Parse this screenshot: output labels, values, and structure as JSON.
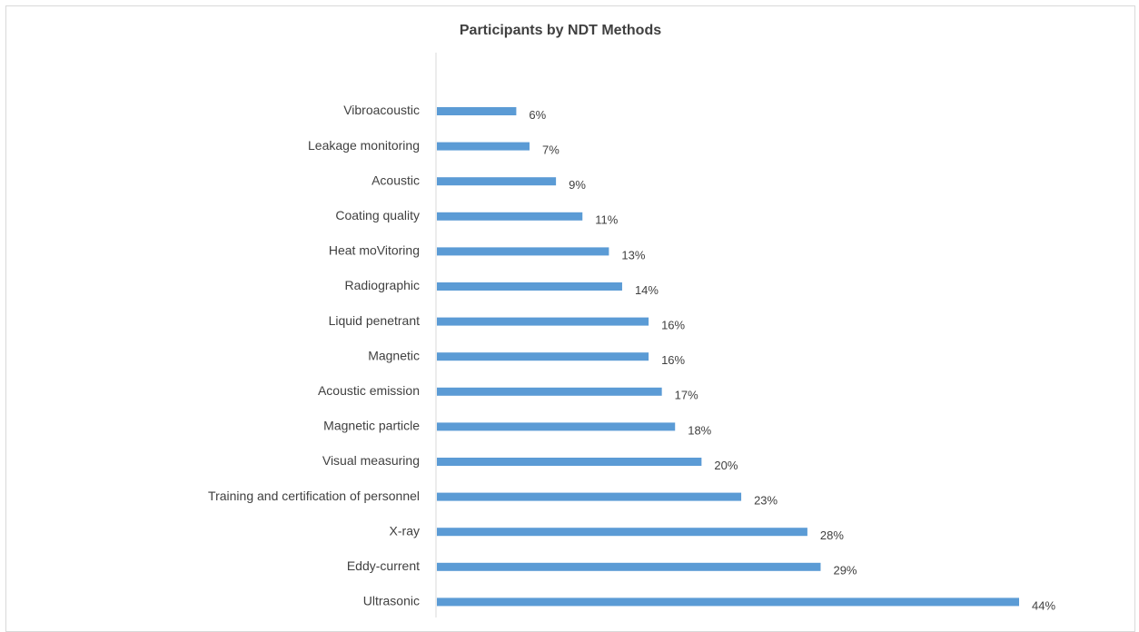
{
  "chart_data": {
    "type": "bar",
    "orientation": "horizontal",
    "title": "Participants by NDT Methods",
    "xlabel": "",
    "ylabel": "",
    "xlim": [
      0,
      44
    ],
    "grid": false,
    "legend": "none",
    "bar_color": "#5b9bd5",
    "categories": [
      "Vibroacoustic",
      "Leakage monitoring",
      "Acoustic",
      "Coating quality",
      "Heat moVitoring",
      "Radiographic",
      "Liquid penetrant",
      "Magnetic",
      "Acoustic emission",
      "Magnetic particle",
      "Visual measuring",
      "Training and certification of personnel",
      "X-ray",
      "Eddy-current",
      "Ultrasonic"
    ],
    "values": [
      6,
      7,
      9,
      11,
      13,
      14,
      16,
      16,
      17,
      18,
      20,
      23,
      28,
      29,
      44
    ],
    "value_labels": [
      "6%",
      "7%",
      "9%",
      "11%",
      "13%",
      "14%",
      "16%",
      "16%",
      "17%",
      "18%",
      "20%",
      "23%",
      "28%",
      "29%",
      "44%"
    ]
  }
}
